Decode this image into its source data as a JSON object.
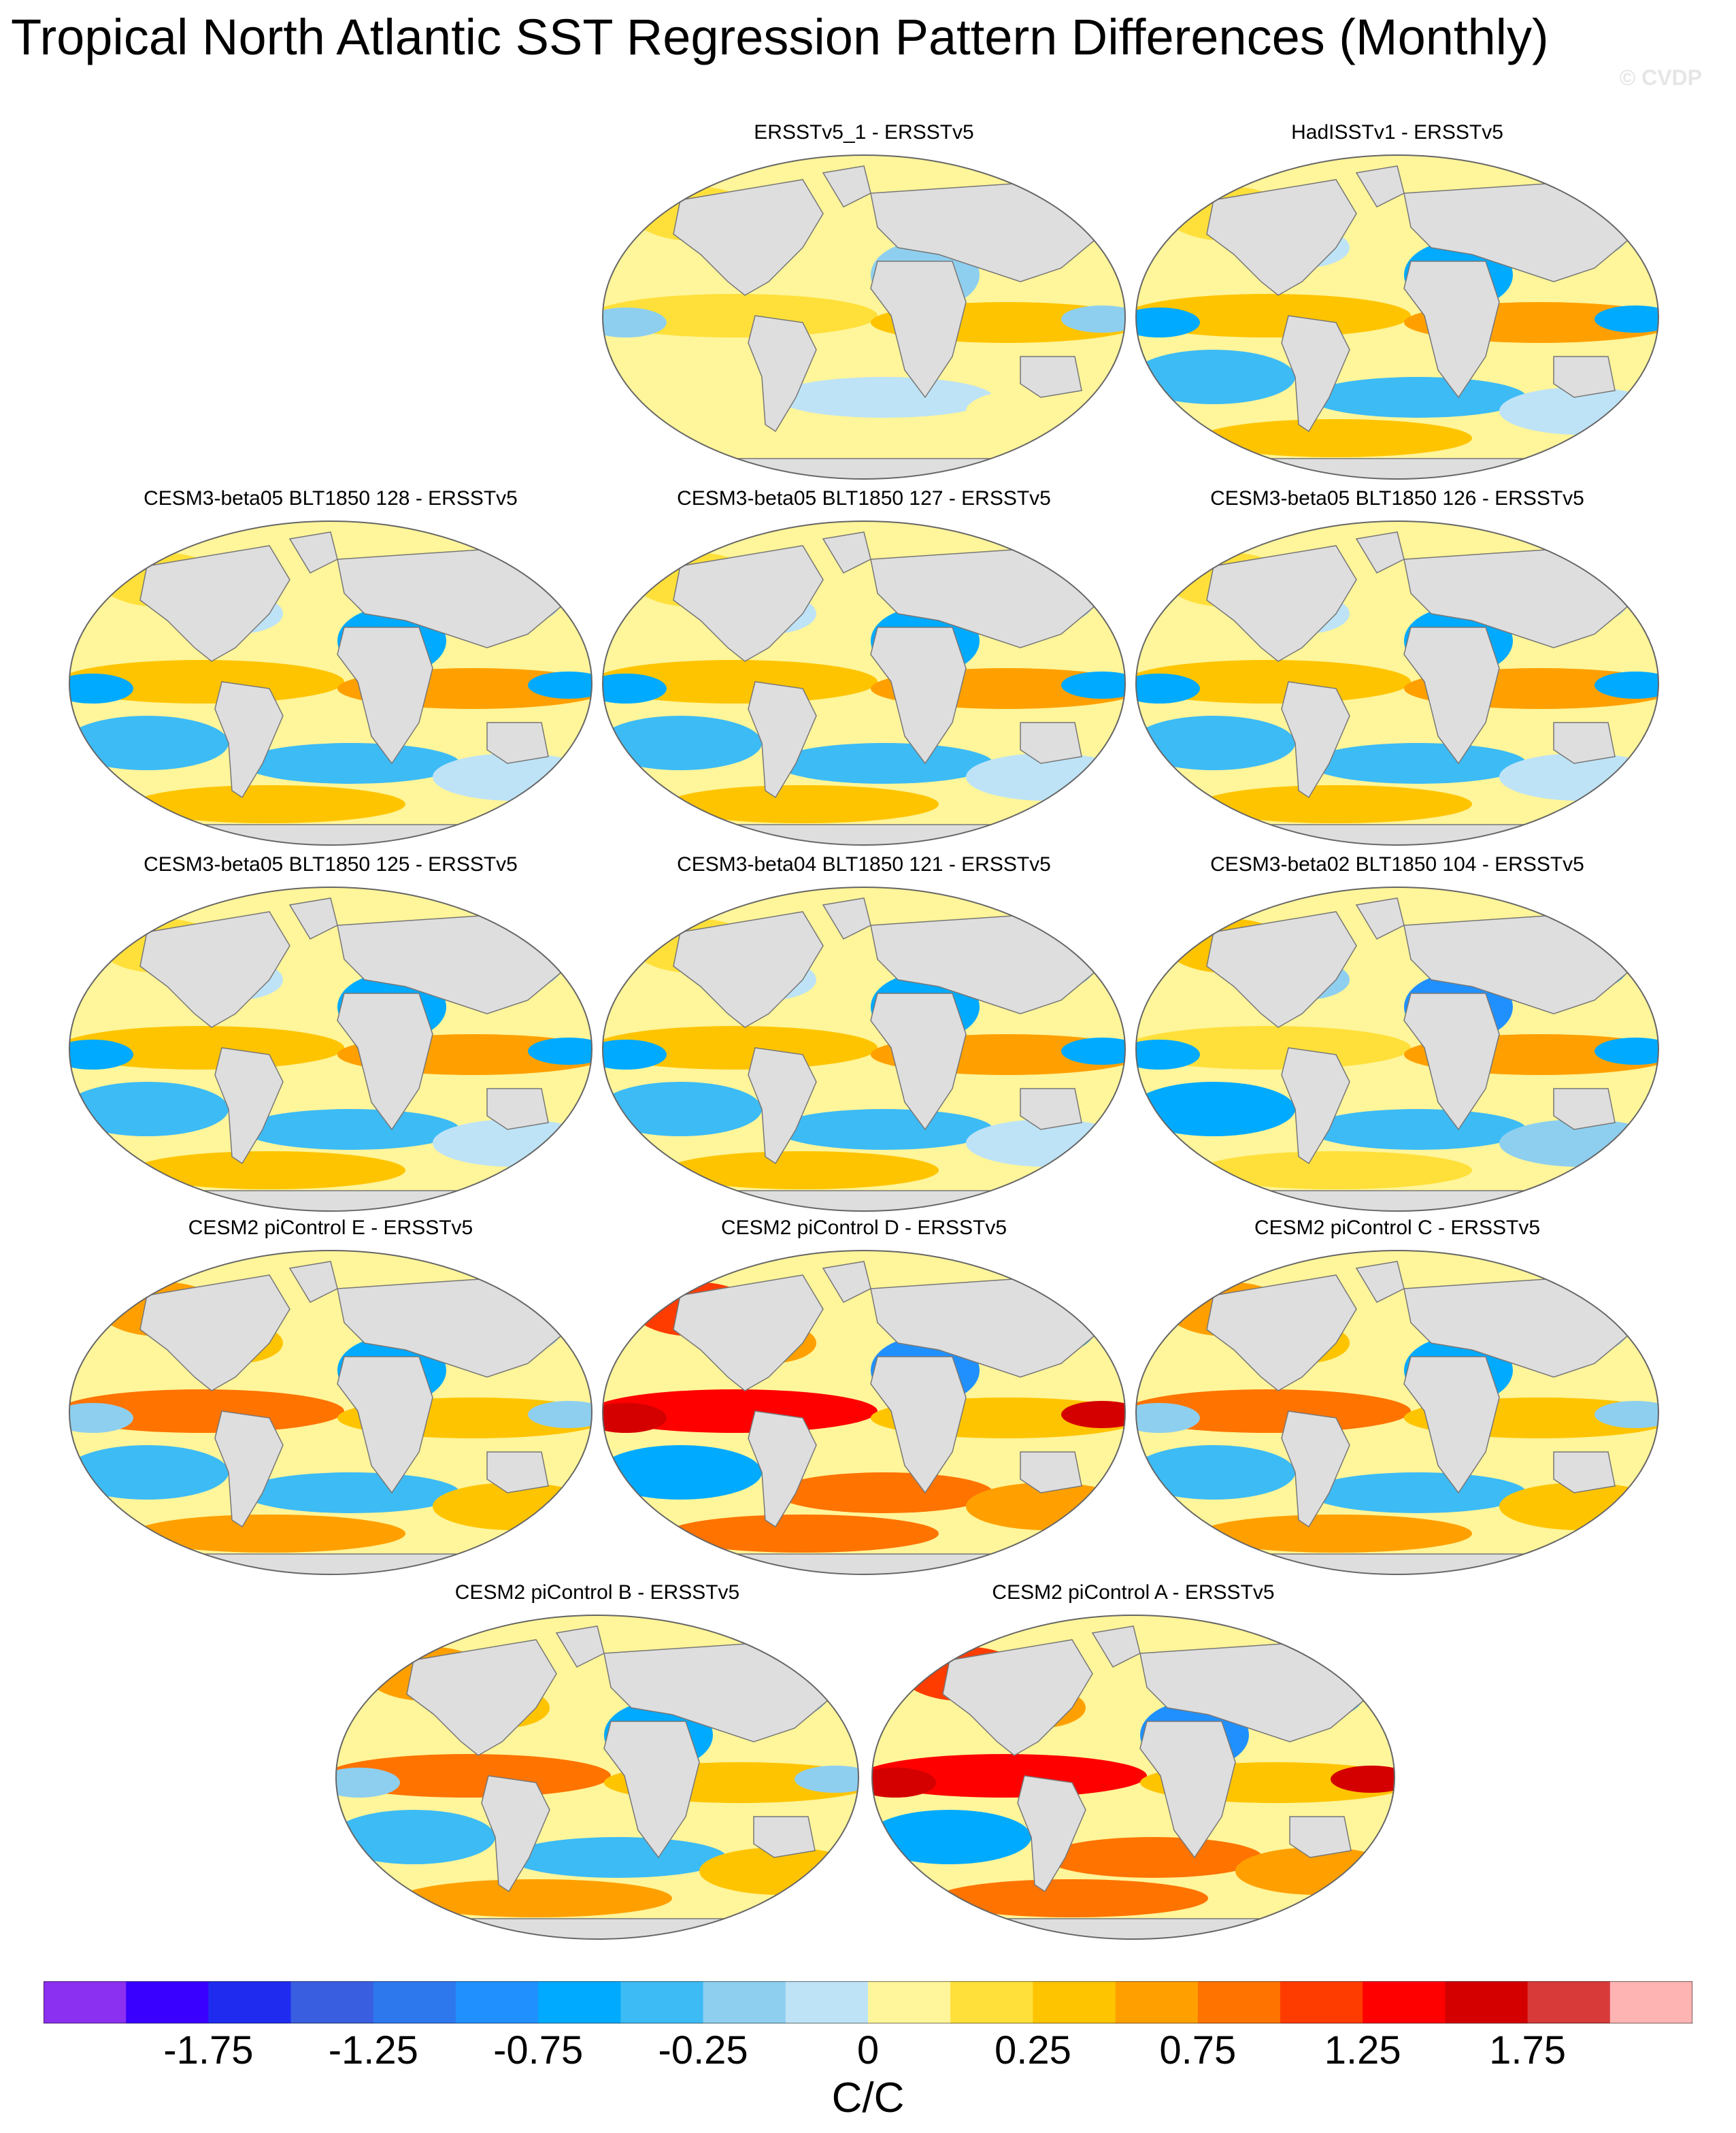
{
  "title": "Tropical North Atlantic SST Regression Pattern Differences (Monthly)",
  "watermark": "© CVDP",
  "panels": [
    {
      "title": "ERSSTv5_1 - ERSSTv5",
      "style": "weak"
    },
    {
      "title": "HadISSTv1 - ERSSTv5",
      "style": "mixed"
    },
    {
      "title": "CESM3-beta05 BLT1850 128 - ERSSTv5",
      "style": "mixed"
    },
    {
      "title": "CESM3-beta05 BLT1850 127 - ERSSTv5",
      "style": "mixed"
    },
    {
      "title": "CESM3-beta05 BLT1850 126 - ERSSTv5",
      "style": "mixed"
    },
    {
      "title": "CESM3-beta05 BLT1850 125 - ERSSTv5",
      "style": "mixed"
    },
    {
      "title": "CESM3-beta04 BLT1850 121 - ERSSTv5",
      "style": "mixed"
    },
    {
      "title": "CESM3-beta02 BLT1850 104 - ERSSTv5",
      "style": "cool"
    },
    {
      "title": "CESM2 piControl E - ERSSTv5",
      "style": "warm"
    },
    {
      "title": "CESM2 piControl D - ERSSTv5",
      "style": "strong"
    },
    {
      "title": "CESM2 piControl C - ERSSTv5",
      "style": "warm"
    },
    {
      "title": "CESM2 piControl B - ERSSTv5",
      "style": "warm"
    },
    {
      "title": "CESM2 piControl A - ERSSTv5",
      "style": "strong"
    }
  ],
  "colorbar": {
    "units": "C/C",
    "colors": [
      "#8b2ff0",
      "#3a00ff",
      "#1f2cf0",
      "#3a5ee0",
      "#2e78ee",
      "#2090ff",
      "#00aaff",
      "#3dbbf5",
      "#8ecfef",
      "#bee3f6",
      "#fff59a",
      "#ffe03a",
      "#ffc400",
      "#ffa000",
      "#ff7300",
      "#ff3c00",
      "#ff0000",
      "#d40000",
      "#d83a3a",
      "#ffb4b4"
    ],
    "tick_labels": [
      "-1.75",
      "-1.25",
      "-0.75",
      "-0.25",
      "0",
      "0.25",
      "0.75",
      "1.25",
      "1.75"
    ]
  }
}
